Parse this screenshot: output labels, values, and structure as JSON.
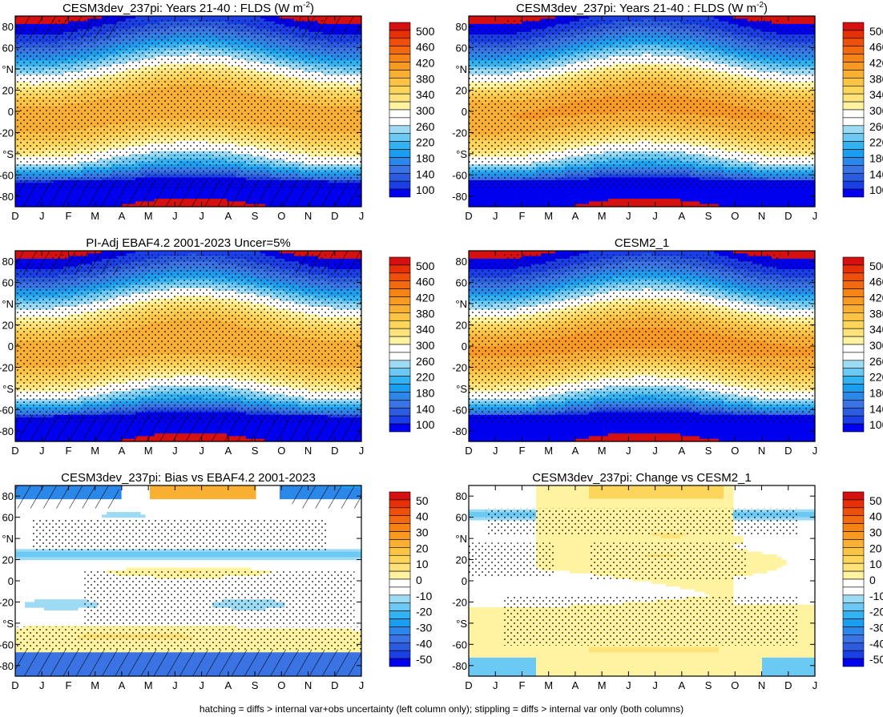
{
  "figure": {
    "footnote": "hatching = diffs > internal var+obs uncertainty (left column only); stippling = diffs > internal var only (both columns)"
  },
  "axes": {
    "x_ticks": [
      "D",
      "J",
      "F",
      "M",
      "A",
      "M",
      "J",
      "J",
      "A",
      "S",
      "O",
      "N",
      "D",
      "J"
    ],
    "y_ticks": [
      "80",
      "60",
      "°N",
      "20",
      "0",
      "-20",
      "°S",
      "-60",
      "-80"
    ]
  },
  "chart_data": [
    {
      "type": "heatmap",
      "title": "CESM3dev_237pi: Years 21-40 : FLDS (W m",
      "title_sup": "-2",
      "title_end": ")",
      "field": "flds",
      "variant": 0,
      "hatch": true,
      "colorbar": "abs",
      "x": [
        "D",
        "J",
        "F",
        "M",
        "A",
        "M",
        "J",
        "J",
        "A",
        "S",
        "O",
        "N",
        "D",
        "J"
      ],
      "ylim": [
        -90,
        90
      ]
    },
    {
      "type": "heatmap",
      "title": "CESM3dev_237pi: Years 21-40 : FLDS (W m",
      "title_sup": "-2",
      "title_end": ")",
      "field": "flds",
      "variant": 1,
      "hatch": false,
      "colorbar": "abs",
      "x": [
        "D",
        "J",
        "F",
        "M",
        "A",
        "M",
        "J",
        "J",
        "A",
        "S",
        "O",
        "N",
        "D",
        "J"
      ],
      "ylim": [
        -90,
        90
      ]
    },
    {
      "type": "heatmap",
      "title": "PI-Adj EBAF4.2 2001-2023 Uncer=5%",
      "field": "flds",
      "variant": 2,
      "hatch": true,
      "colorbar": "abs",
      "x": [
        "D",
        "J",
        "F",
        "M",
        "A",
        "M",
        "J",
        "J",
        "A",
        "S",
        "O",
        "N",
        "D",
        "J"
      ],
      "ylim": [
        -90,
        90
      ]
    },
    {
      "type": "heatmap",
      "title": "CESM2_1",
      "field": "flds",
      "variant": 3,
      "hatch": false,
      "colorbar": "abs",
      "x": [
        "D",
        "J",
        "F",
        "M",
        "A",
        "M",
        "J",
        "J",
        "A",
        "S",
        "O",
        "N",
        "D",
        "J"
      ],
      "ylim": [
        -90,
        90
      ]
    },
    {
      "type": "heatmap",
      "title": "CESM3dev_237pi: Bias vs EBAF4.2 2001-2023",
      "field": "bias",
      "hatch": true,
      "colorbar": "diff",
      "x": [
        "D",
        "J",
        "F",
        "M",
        "A",
        "M",
        "J",
        "J",
        "A",
        "S",
        "O",
        "N",
        "D",
        "J"
      ],
      "ylim": [
        -90,
        90
      ]
    },
    {
      "type": "heatmap",
      "title": "CESM3dev_237pi: Change vs CESM2_1",
      "field": "change",
      "hatch": false,
      "colorbar": "diff",
      "x": [
        "D",
        "J",
        "F",
        "M",
        "A",
        "M",
        "J",
        "J",
        "A",
        "S",
        "O",
        "N",
        "D",
        "J"
      ],
      "ylim": [
        -90,
        90
      ]
    }
  ],
  "colorbars": {
    "abs": {
      "labels": [
        "500",
        "460",
        "420",
        "380",
        "340",
        "300",
        "260",
        "220",
        "180",
        "140",
        "100"
      ],
      "levels": [
        80,
        100,
        120,
        140,
        160,
        180,
        200,
        220,
        240,
        260,
        280,
        300,
        320,
        340,
        360,
        380,
        400,
        420,
        440,
        460,
        480,
        500,
        520
      ],
      "colors": [
        "#0000ee",
        "#1a3fe6",
        "#2b5ce0",
        "#3a73e3",
        "#2b87e8",
        "#1a9ef0",
        "#33b2f2",
        "#6bc9f3",
        "#9ddaf3",
        "#ffffff",
        "#ffffff",
        "#fff2a0",
        "#ffe37a",
        "#fdd55a",
        "#fcc444",
        "#f9b032",
        "#f89a22",
        "#f58415",
        "#f26a10",
        "#ee500c",
        "#e63008",
        "#d41010"
      ]
    },
    "diff": {
      "labels": [
        "50",
        "40",
        "30",
        "20",
        "10",
        "0",
        "-10",
        "-20",
        "-30",
        "-40",
        "-50"
      ],
      "levels": [
        -55,
        -50,
        -45,
        -40,
        -35,
        -30,
        -25,
        -20,
        -15,
        -10,
        -5,
        0,
        5,
        10,
        15,
        20,
        25,
        30,
        35,
        40,
        45,
        50,
        55
      ],
      "colors": [
        "#0000ee",
        "#1a3fe6",
        "#2b5ce0",
        "#3a73e3",
        "#2b87e8",
        "#1a9ef0",
        "#33b2f2",
        "#6bc9f3",
        "#9ddaf3",
        "#ffffff",
        "#ffffff",
        "#fff2a0",
        "#ffe37a",
        "#fdd55a",
        "#fcc444",
        "#f9b032",
        "#f89a22",
        "#f58415",
        "#f26a10",
        "#ee500c",
        "#e63008",
        "#d41010"
      ]
    }
  }
}
